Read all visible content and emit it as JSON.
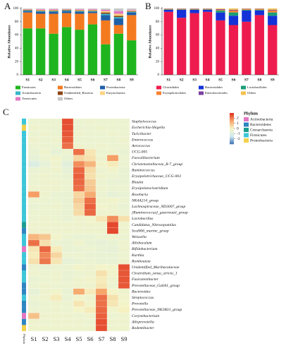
{
  "chart_data": [
    {
      "type": "bar",
      "stacked": true,
      "label": "A",
      "ylabel": "Relative Abundance",
      "categories": [
        "S1",
        "S2",
        "S3",
        "S4",
        "S5",
        "S6",
        "S7",
        "S8",
        "S9"
      ],
      "ylim": [
        0,
        100
      ],
      "yticks": [
        0,
        20,
        40,
        60,
        80,
        100
      ],
      "series": [
        {
          "name": "Firmicutes",
          "color": "#1fb51f",
          "values": [
            70,
            70,
            62,
            72,
            68,
            76,
            46,
            62,
            52
          ]
        },
        {
          "name": "Bacteroidetes",
          "color": "#f47a20",
          "values": [
            24,
            22,
            30,
            21,
            24,
            17,
            36,
            13,
            38
          ]
        },
        {
          "name": "Proteobacteria",
          "color": "#1f5fa8",
          "values": [
            2,
            3,
            3,
            3,
            3,
            2,
            8,
            10,
            4
          ]
        },
        {
          "name": "Actinobacteria",
          "color": "#35b6c8",
          "values": [
            1,
            1,
            1,
            1,
            1,
            1,
            2,
            2,
            1
          ]
        },
        {
          "name": "Unidentified_Bacteria",
          "color": "#8b4513",
          "values": [
            1,
            1,
            1,
            1,
            1,
            1,
            2,
            2,
            1
          ]
        },
        {
          "name": "Euryarchaeota",
          "color": "#ffd27f",
          "values": [
            0.5,
            1,
            1,
            0.5,
            1,
            1,
            2,
            3,
            1
          ]
        },
        {
          "name": "Tenericutes",
          "color": "#e377c2",
          "values": [
            0.5,
            1,
            1,
            0.5,
            1,
            1,
            2,
            4,
            1
          ]
        },
        {
          "name": "Others",
          "color": "#c7c7c7",
          "values": [
            1,
            1,
            1,
            1,
            1,
            1,
            2,
            4,
            2
          ]
        }
      ]
    },
    {
      "type": "bar",
      "stacked": true,
      "label": "B",
      "ylabel": "Relative Abundance",
      "categories": [
        "S1",
        "S2",
        "S3",
        "S4",
        "S5",
        "S6",
        "S7",
        "S8",
        "S9"
      ],
      "ylim": [
        0,
        100
      ],
      "yticks": [
        0,
        20,
        40,
        60,
        80,
        100
      ],
      "series": [
        {
          "name": "Clostridiales",
          "color": "#ee1c4e",
          "values": [
            95,
            86,
            93,
            95,
            82,
            75,
            80,
            90,
            75
          ]
        },
        {
          "name": "Bacteroidales",
          "color": "#1432d8",
          "values": [
            3,
            12,
            5,
            3,
            12,
            14,
            17,
            7,
            14
          ]
        },
        {
          "name": "Lactobacillales",
          "color": "#1a9e77",
          "values": [
            0.5,
            0.5,
            0.5,
            0.5,
            3,
            5,
            1,
            1,
            5
          ]
        },
        {
          "name": "Erysipelotrichales",
          "color": "#f58231",
          "values": [
            0.5,
            0.5,
            0.5,
            0.5,
            1,
            3,
            1,
            1,
            3
          ]
        },
        {
          "name": "Enterobacteriales",
          "color": "#7b3fa0",
          "values": [
            0.5,
            0.5,
            0.5,
            0.5,
            1,
            1,
            0.5,
            0.5,
            1
          ]
        },
        {
          "name": "Others",
          "color": "#f2c14e",
          "values": [
            0.5,
            0.5,
            0.5,
            0.5,
            1,
            2,
            0.5,
            0.5,
            2
          ]
        }
      ]
    },
    {
      "type": "heatmap",
      "label": "C",
      "columns": [
        "S1",
        "S2",
        "S3",
        "S4",
        "S5",
        "S6",
        "S7",
        "S8",
        "S9"
      ],
      "rows": [
        "Staphylococcus",
        "Escherichia-Shigella",
        "Turicibacter",
        "Enterococcus",
        "Aerococcus",
        "UCG-005",
        "Faecalibacterium",
        "Christensenellaceae_R-7_group",
        "Ruminococcus",
        "Erysipelotrichaceae_UCG-003",
        "Blautia",
        "Erysipelatoclostridium",
        "Roseburia",
        "NK4A214_group",
        "Lachnospiraceae_ND3007_group",
        "[Ruminococcus]_gauvreauii_group",
        "Lactobacillus",
        "Candidatus_Nitrosopumilus",
        "Scal006_marine_group",
        "Weissella",
        "Allobaculum",
        "Bifidobacterium",
        "Kurthia",
        "Romboutsia",
        "Unidentified_Muribaculaceae",
        "Clostridium_sensu_stricto_1",
        "Fusicatenibacter",
        "Prevotellaceae_Ga6A1_group",
        "Bacteroides",
        "Streptococcus",
        "Prevotella",
        "Prevotellaceae_NK3B31_group",
        "Corynebacterium",
        "Alloprevotella",
        "Rodentibacter"
      ],
      "values": [
        [
          -0.4,
          -0.4,
          -0.4,
          2.6,
          -0.4,
          -0.3,
          -0.4,
          -0.4,
          -0.4
        ],
        [
          -0.3,
          -0.4,
          -0.4,
          2.6,
          -0.4,
          -0.4,
          -0.3,
          -0.4,
          -0.4
        ],
        [
          -0.4,
          -0.3,
          -0.4,
          2.5,
          -0.3,
          -0.4,
          -0.4,
          -0.3,
          -0.4
        ],
        [
          -0.3,
          -0.4,
          -0.3,
          2.4,
          -0.4,
          -0.4,
          -0.4,
          -0.4,
          -0.3
        ],
        [
          -0.4,
          -0.4,
          -0.4,
          2.2,
          -0.3,
          -0.4,
          -0.3,
          -0.4,
          -0.4
        ],
        [
          -0.5,
          -0.3,
          -0.6,
          -0.4,
          2.2,
          0.3,
          -0.4,
          -0.3,
          -0.5
        ],
        [
          -0.6,
          -0.4,
          -0.2,
          -0.5,
          0.6,
          0.4,
          -0.3,
          1.6,
          -0.4
        ],
        [
          -1,
          -0.6,
          -0.3,
          -0.8,
          1.8,
          1.2,
          -0.2,
          0.2,
          -0.4
        ],
        [
          -0.5,
          -0.4,
          -0.3,
          -0.6,
          2.3,
          0.5,
          -0.4,
          -0.2,
          -0.5
        ],
        [
          -0.4,
          -0.3,
          -0.4,
          -0.5,
          2.4,
          0.4,
          -0.3,
          -0.4,
          -0.5
        ],
        [
          -0.4,
          -0.3,
          -0.3,
          -0.4,
          2.3,
          0.8,
          -0.4,
          -0.5,
          -0.5
        ],
        [
          -0.3,
          -0.3,
          -0.3,
          -0.4,
          2.2,
          0.9,
          -0.3,
          -0.4,
          -0.4
        ],
        [
          1.6,
          -0.3,
          -0.5,
          -0.5,
          0.6,
          1.4,
          -0.4,
          -0.6,
          -0.5
        ],
        [
          -0.4,
          -0.4,
          -0.4,
          -0.5,
          0.8,
          2.2,
          -0.3,
          -0.2,
          -0.4
        ],
        [
          -0.5,
          -0.4,
          -0.3,
          -0.5,
          0.6,
          2.4,
          -0.2,
          -0.3,
          -0.5
        ],
        [
          -0.4,
          -0.4,
          -0.4,
          -0.5,
          0.5,
          2.3,
          -0.3,
          -0.3,
          -0.4
        ],
        [
          -0.4,
          -0.3,
          -0.4,
          -0.5,
          -0.3,
          -0.2,
          0.3,
          1.8,
          0.4
        ],
        [
          -0.3,
          -0.3,
          -0.3,
          -0.3,
          -0.3,
          -0.3,
          -0.3,
          2.7,
          -0.3
        ],
        [
          -0.3,
          -0.3,
          -0.3,
          -0.3,
          -0.3,
          -0.3,
          -0.3,
          2.7,
          -0.3
        ],
        [
          1.2,
          0.9,
          -0.2,
          -0.4,
          -0.5,
          -0.5,
          -0.4,
          -0.3,
          -0.4
        ],
        [
          2.2,
          0.4,
          -0.4,
          -0.5,
          -0.3,
          -0.5,
          -0.6,
          -0.5,
          -0.3
        ],
        [
          0.3,
          2.3,
          0.2,
          -0.5,
          -0.5,
          -0.4,
          -0.5,
          -0.6,
          -0.3
        ],
        [
          0.2,
          1.9,
          0.6,
          -0.4,
          -0.4,
          -0.5,
          -0.5,
          -0.5,
          -0.4
        ],
        [
          0.4,
          2.1,
          0.3,
          -0.6,
          -0.5,
          -0.4,
          -0.5,
          -0.5,
          -0.3
        ],
        [
          -0.4,
          -0.5,
          -0.4,
          -0.4,
          -0.2,
          -0.3,
          -0.1,
          -0.2,
          2.6
        ],
        [
          -0.3,
          -0.4,
          -0.3,
          -0.5,
          -0.4,
          -0.3,
          0.4,
          -0.2,
          2.5
        ],
        [
          -0.5,
          -0.4,
          -0.3,
          -0.5,
          -0.3,
          -0.2,
          0.2,
          -0.3,
          2.5
        ],
        [
          -0.4,
          -0.3,
          -0.4,
          -0.4,
          -0.3,
          -0.3,
          0.3,
          -0.4,
          2.5
        ],
        [
          -0.6,
          -0.3,
          -0.2,
          -0.5,
          1.4,
          0.2,
          1.5,
          -0.1,
          -0.3
        ],
        [
          -0.4,
          -0.3,
          0.2,
          -0.5,
          -0.2,
          -0.3,
          2.2,
          0.4,
          -0.2
        ],
        [
          -0.5,
          -0.4,
          -0.3,
          -0.4,
          0.3,
          -0.2,
          2.2,
          0.3,
          -0.1
        ],
        [
          -0.4,
          -0.4,
          -0.3,
          -0.4,
          -0.1,
          0.2,
          2.3,
          -0.2,
          0.1
        ],
        [
          1,
          -0.3,
          -0.3,
          -0.3,
          -0.4,
          -0.3,
          2.4,
          -0.4,
          -0.3
        ],
        [
          -0.3,
          -0.4,
          -0.3,
          -0.3,
          -0.3,
          -0.4,
          2.6,
          -0.3,
          -0.3
        ],
        [
          -0.3,
          -0.3,
          -0.3,
          -0.3,
          -0.3,
          -0.3,
          2.6,
          -0.3,
          -0.3
        ]
      ],
      "zlim": [
        -3,
        3
      ],
      "zticks": [
        2,
        1,
        0,
        -1,
        -2
      ],
      "colorscale": [
        "#3a6fb5",
        "#cfe9ee",
        "#f6f6c6",
        "#f6a66a",
        "#e0301e"
      ],
      "group_title": "Phylum",
      "groups": [
        {
          "name": "Actinobacteria",
          "color": "#e377c2"
        },
        {
          "name": "Bacteroidetes",
          "color": "#2e86c1"
        },
        {
          "name": "Crenarchaeota",
          "color": "#1a9e8f"
        },
        {
          "name": "Firmicutes",
          "color": "#3cc6d8"
        },
        {
          "name": "Proteobacteria",
          "color": "#f2d14e"
        }
      ],
      "row_group": [
        3,
        4,
        3,
        3,
        3,
        3,
        3,
        3,
        3,
        3,
        3,
        3,
        3,
        3,
        3,
        3,
        3,
        2,
        1,
        3,
        3,
        0,
        3,
        3,
        1,
        3,
        3,
        1,
        1,
        3,
        1,
        1,
        0,
        1,
        4
      ]
    }
  ]
}
